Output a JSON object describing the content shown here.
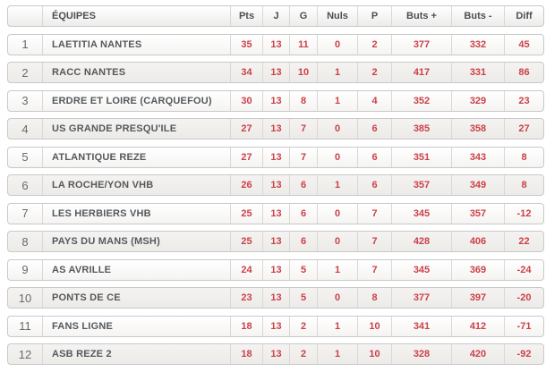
{
  "colors": {
    "accent_red": "#cb4149",
    "header_text": "#4b4f54",
    "team_text": "#55585b",
    "rank_text": "#6a6a6a",
    "row_border": "#c9c9c9",
    "alt_row_bg": "#f1f0ee"
  },
  "table": {
    "columns": [
      {
        "key": "rank",
        "label": ""
      },
      {
        "key": "team",
        "label": "ÉQUIPES"
      },
      {
        "key": "pts",
        "label": "Pts"
      },
      {
        "key": "j",
        "label": "J"
      },
      {
        "key": "g",
        "label": "G"
      },
      {
        "key": "nuls",
        "label": "Nuls"
      },
      {
        "key": "p",
        "label": "P"
      },
      {
        "key": "buts_plus",
        "label": "Buts +"
      },
      {
        "key": "buts_minus",
        "label": "Buts -"
      },
      {
        "key": "diff",
        "label": "Diff"
      }
    ],
    "rows": [
      {
        "rank": "1",
        "team": "LAETITIA NANTES",
        "pts": "35",
        "j": "13",
        "g": "11",
        "nuls": "0",
        "p": "2",
        "buts_plus": "377",
        "buts_minus": "332",
        "diff": "45"
      },
      {
        "rank": "2",
        "team": "RACC NANTES",
        "pts": "34",
        "j": "13",
        "g": "10",
        "nuls": "1",
        "p": "2",
        "buts_plus": "417",
        "buts_minus": "331",
        "diff": "86"
      },
      {
        "rank": "3",
        "team": "ERDRE ET LOIRE (CARQUEFOU)",
        "pts": "30",
        "j": "13",
        "g": "8",
        "nuls": "1",
        "p": "4",
        "buts_plus": "352",
        "buts_minus": "329",
        "diff": "23"
      },
      {
        "rank": "4",
        "team": "US GRANDE PRESQU'ILE",
        "pts": "27",
        "j": "13",
        "g": "7",
        "nuls": "0",
        "p": "6",
        "buts_plus": "385",
        "buts_minus": "358",
        "diff": "27"
      },
      {
        "rank": "5",
        "team": "ATLANTIQUE REZE",
        "pts": "27",
        "j": "13",
        "g": "7",
        "nuls": "0",
        "p": "6",
        "buts_plus": "351",
        "buts_minus": "343",
        "diff": "8"
      },
      {
        "rank": "6",
        "team": "LA ROCHE/YON VHB",
        "pts": "26",
        "j": "13",
        "g": "6",
        "nuls": "1",
        "p": "6",
        "buts_plus": "357",
        "buts_minus": "349",
        "diff": "8"
      },
      {
        "rank": "7",
        "team": "LES HERBIERS VHB",
        "pts": "25",
        "j": "13",
        "g": "6",
        "nuls": "0",
        "p": "7",
        "buts_plus": "345",
        "buts_minus": "357",
        "diff": "-12"
      },
      {
        "rank": "8",
        "team": "PAYS DU MANS (MSH)",
        "pts": "25",
        "j": "13",
        "g": "6",
        "nuls": "0",
        "p": "7",
        "buts_plus": "428",
        "buts_minus": "406",
        "diff": "22"
      },
      {
        "rank": "9",
        "team": "AS AVRILLE",
        "pts": "24",
        "j": "13",
        "g": "5",
        "nuls": "1",
        "p": "7",
        "buts_plus": "345",
        "buts_minus": "369",
        "diff": "-24"
      },
      {
        "rank": "10",
        "team": "PONTS DE CE",
        "pts": "23",
        "j": "13",
        "g": "5",
        "nuls": "0",
        "p": "8",
        "buts_plus": "377",
        "buts_minus": "397",
        "diff": "-20"
      },
      {
        "rank": "11",
        "team": "FANS LIGNE",
        "pts": "18",
        "j": "13",
        "g": "2",
        "nuls": "1",
        "p": "10",
        "buts_plus": "341",
        "buts_minus": "412",
        "diff": "-71"
      },
      {
        "rank": "12",
        "team": "ASB REZE 2",
        "pts": "18",
        "j": "13",
        "g": "2",
        "nuls": "1",
        "p": "10",
        "buts_plus": "328",
        "buts_minus": "420",
        "diff": "-92"
      }
    ]
  }
}
